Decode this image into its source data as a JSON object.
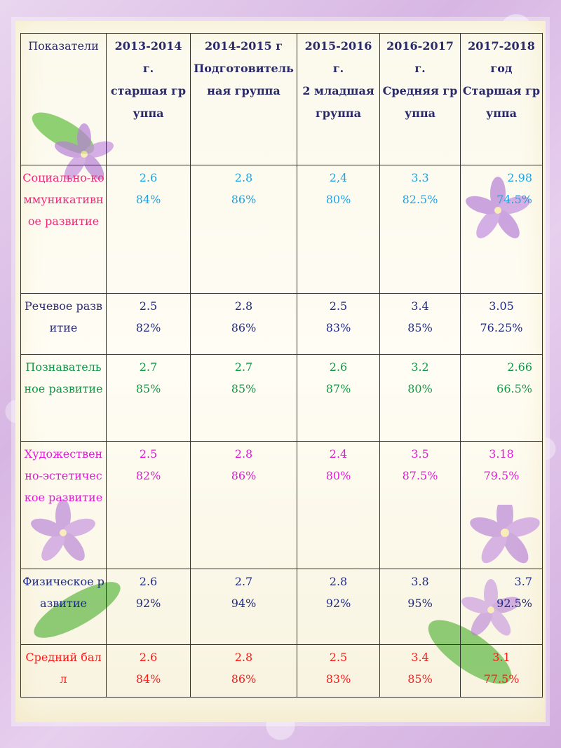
{
  "table": {
    "header": {
      "indicator": "Показатели",
      "years": [
        {
          "year": "2013-2014",
          "suffix": "г.",
          "group": "старшая группа"
        },
        {
          "year": "2014-2015 г",
          "suffix": "",
          "group": "Подготовительная группа"
        },
        {
          "year": "2015-2016",
          "suffix": "г.",
          "group": "2 младшая группа"
        },
        {
          "year": "2016-2017",
          "suffix": "г.",
          "group": "Средняя группа"
        },
        {
          "year": "2017-2018",
          "suffix": "год",
          "group": "Старшая группа"
        }
      ]
    },
    "rows": [
      {
        "label": "Социально-коммуникативное развитие",
        "label_color": "#f0287a",
        "value_color": "#1aa4e6",
        "cells": [
          {
            "score": "2.6",
            "percent": "84%"
          },
          {
            "score": "2.8",
            "percent": "86%"
          },
          {
            "score": "2,4",
            "percent": "80%"
          },
          {
            "score": "3.3",
            "percent": "82.5%"
          },
          {
            "score": "2.98",
            "percent": "74.5%"
          }
        ]
      },
      {
        "label": "Речевое развитие",
        "label_color": "#2b2b74",
        "value_color": "#1e2a88",
        "cells": [
          {
            "score": "2.5",
            "percent": "82%"
          },
          {
            "score": "2.8",
            "percent": "86%"
          },
          {
            "score": "2.5",
            "percent": "83%"
          },
          {
            "score": "3.4",
            "percent": "85%"
          },
          {
            "score": "3.05",
            "percent": "76.25%"
          }
        ]
      },
      {
        "label": "Познавательное развитие",
        "label_color": "#0c9a47",
        "value_color": "#0c9a47",
        "cells": [
          {
            "score": "2.7",
            "percent": "85%"
          },
          {
            "score": "2.7",
            "percent": "85%"
          },
          {
            "score": "2.6",
            "percent": "87%"
          },
          {
            "score": "3.2",
            "percent": "80%"
          },
          {
            "score": "2.66",
            "percent": "66.5%"
          }
        ]
      },
      {
        "label": "Художественно-эстетическое развитие",
        "label_color": "#e21ad8",
        "value_color": "#e21ad8",
        "cells": [
          {
            "score": "2.5",
            "percent": "82%"
          },
          {
            "score": "2.8",
            "percent": "86%"
          },
          {
            "score": "2.4",
            "percent": "80%"
          },
          {
            "score": "3.5",
            "percent": "87.5%"
          },
          {
            "score": "3.18",
            "percent": "79.5%"
          }
        ]
      },
      {
        "label": "Физическое развитие",
        "label_color": "#1e2a88",
        "value_color": "#1e2a88",
        "cells": [
          {
            "score": "2.6",
            "percent": "92%"
          },
          {
            "score": "2.7",
            "percent": "94%"
          },
          {
            "score": "2.8",
            "percent": "92%"
          },
          {
            "score": "3.8",
            "percent": "95%"
          },
          {
            "score": "3.7",
            "percent": "92.5%"
          }
        ]
      },
      {
        "label": "Средний балл",
        "label_color": "#ff1a1a",
        "value_color": "#ff1a1a",
        "cells": [
          {
            "score": "2.6",
            "percent": "84%"
          },
          {
            "score": "2.8",
            "percent": "86%"
          },
          {
            "score": "2.5",
            "percent": "83%"
          },
          {
            "score": "3.4",
            "percent": "85%"
          },
          {
            "score": "3.1",
            "percent": "77.5%"
          }
        ]
      }
    ]
  }
}
